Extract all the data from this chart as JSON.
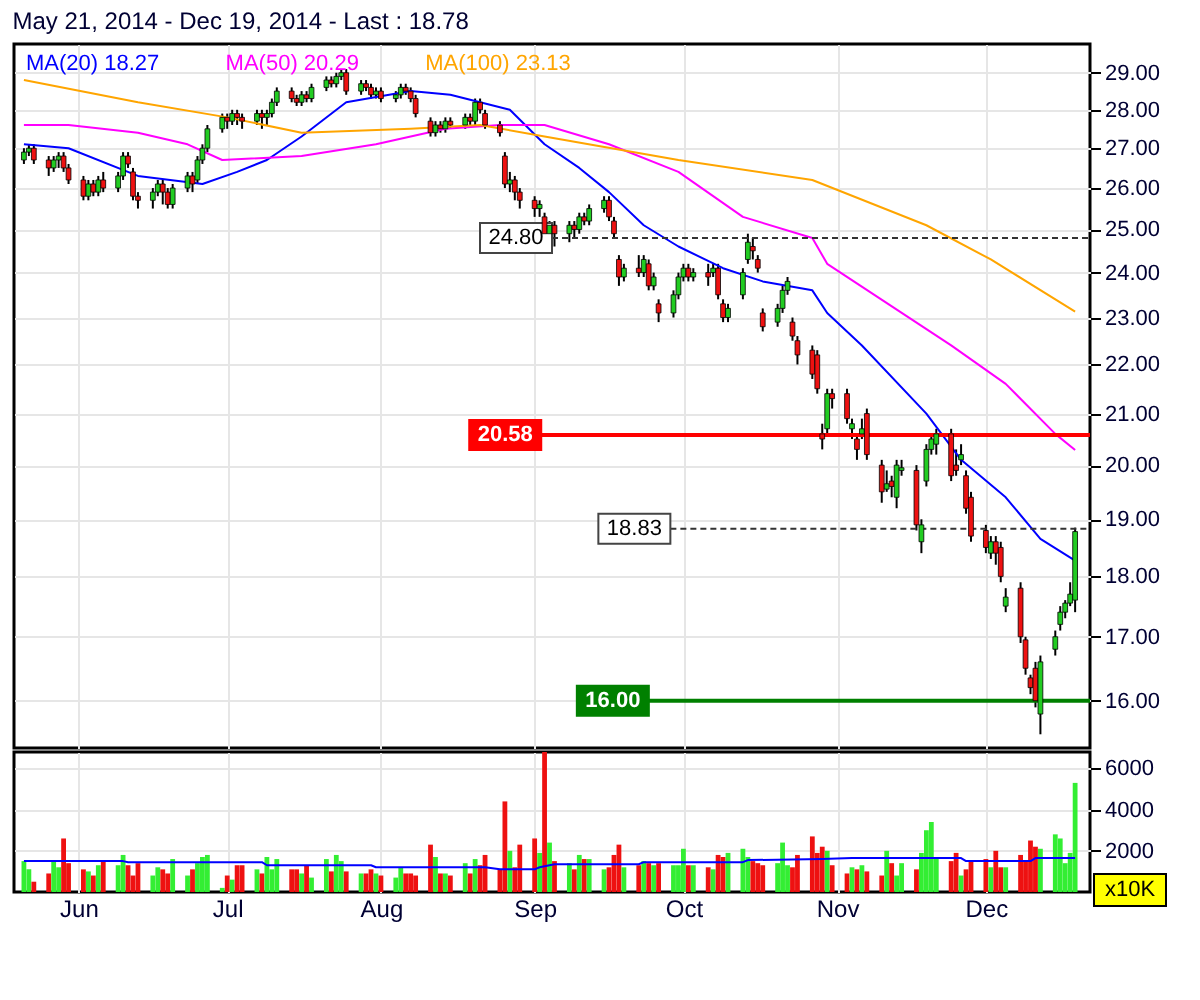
{
  "chart_data": [
    {
      "type": "candlestick",
      "title": "May 21, 2014 - Dec 19, 2014 - Last : 18.78",
      "x": [
        "2014-05-21",
        "2014-05-22",
        "2014-05-23",
        "2014-05-26",
        "2014-05-27",
        "2014-05-28",
        "2014-05-29",
        "2014-05-30",
        "2014-06-02",
        "2014-06-03",
        "2014-06-04",
        "2014-06-05",
        "2014-06-06",
        "2014-06-09",
        "2014-06-10",
        "2014-06-11",
        "2014-06-12",
        "2014-06-13",
        "2014-06-16",
        "2014-06-17",
        "2014-06-18",
        "2014-06-19",
        "2014-06-20",
        "2014-06-23",
        "2014-06-24",
        "2014-06-25",
        "2014-06-26",
        "2014-06-27",
        "2014-06-30",
        "2014-07-01",
        "2014-07-02",
        "2014-07-03",
        "2014-07-04",
        "2014-07-07",
        "2014-07-08",
        "2014-07-09",
        "2014-07-10",
        "2014-07-11",
        "2014-07-14",
        "2014-07-15",
        "2014-07-16",
        "2014-07-17",
        "2014-07-18",
        "2014-07-21",
        "2014-07-22",
        "2014-07-23",
        "2014-07-24",
        "2014-07-25",
        "2014-07-28",
        "2014-07-29",
        "2014-07-30",
        "2014-07-31",
        "2014-08-01",
        "2014-08-04",
        "2014-08-05",
        "2014-08-06",
        "2014-08-07",
        "2014-08-08",
        "2014-08-11",
        "2014-08-12",
        "2014-08-13",
        "2014-08-14",
        "2014-08-15",
        "2014-08-18",
        "2014-08-19",
        "2014-08-20",
        "2014-08-21",
        "2014-08-22",
        "2014-08-25",
        "2014-08-26",
        "2014-08-27",
        "2014-08-28",
        "2014-08-29",
        "2014-09-01",
        "2014-09-02",
        "2014-09-03",
        "2014-09-04",
        "2014-09-05",
        "2014-09-08",
        "2014-09-09",
        "2014-09-10",
        "2014-09-11",
        "2014-09-12",
        "2014-09-15",
        "2014-09-16",
        "2014-09-17",
        "2014-09-18",
        "2014-09-19",
        "2014-09-22",
        "2014-09-23",
        "2014-09-24",
        "2014-09-25",
        "2014-09-26",
        "2014-09-29",
        "2014-09-30",
        "2014-10-01",
        "2014-10-02",
        "2014-10-03",
        "2014-10-06",
        "2014-10-07",
        "2014-10-08",
        "2014-10-09",
        "2014-10-10",
        "2014-10-13",
        "2014-10-14",
        "2014-10-15",
        "2014-10-16",
        "2014-10-17",
        "2014-10-20",
        "2014-10-21",
        "2014-10-22",
        "2014-10-23",
        "2014-10-24",
        "2014-10-27",
        "2014-10-28",
        "2014-10-29",
        "2014-10-30",
        "2014-10-31",
        "2014-11-03",
        "2014-11-04",
        "2014-11-05",
        "2014-11-06",
        "2014-11-07",
        "2014-11-10",
        "2014-11-11",
        "2014-11-12",
        "2014-11-13",
        "2014-11-14",
        "2014-11-17",
        "2014-11-18",
        "2014-11-19",
        "2014-11-20",
        "2014-11-21",
        "2014-11-24",
        "2014-11-25",
        "2014-11-26",
        "2014-11-27",
        "2014-11-28",
        "2014-12-01",
        "2014-12-02",
        "2014-12-03",
        "2014-12-04",
        "2014-12-05",
        "2014-12-08",
        "2014-12-09",
        "2014-12-10",
        "2014-12-11",
        "2014-12-12",
        "2014-12-15",
        "2014-12-16",
        "2014-12-17",
        "2014-12-18",
        "2014-12-19"
      ],
      "ohlc": [
        [
          26.7,
          27.0,
          26.6,
          26.9
        ],
        [
          26.9,
          27.1,
          26.8,
          27.0
        ],
        [
          27.0,
          27.1,
          26.6,
          26.7
        ],
        [
          26.7,
          26.8,
          26.3,
          26.5
        ],
        [
          26.5,
          26.8,
          26.4,
          26.7
        ],
        [
          26.7,
          26.9,
          26.5,
          26.8
        ],
        [
          26.8,
          26.9,
          26.4,
          26.5
        ],
        [
          26.5,
          26.6,
          26.1,
          26.2
        ],
        [
          26.2,
          26.3,
          25.7,
          25.8
        ],
        [
          25.8,
          26.2,
          25.7,
          26.1
        ],
        [
          26.1,
          26.2,
          25.8,
          25.9
        ],
        [
          25.9,
          26.3,
          25.8,
          26.2
        ],
        [
          26.2,
          26.4,
          25.9,
          26.0
        ],
        [
          26.0,
          26.4,
          25.9,
          26.3
        ],
        [
          26.3,
          26.9,
          26.2,
          26.8
        ],
        [
          26.8,
          26.9,
          26.5,
          26.6
        ],
        [
          26.4,
          26.5,
          25.7,
          25.8
        ],
        [
          25.8,
          25.9,
          25.5,
          25.7
        ],
        [
          25.7,
          26.0,
          25.5,
          25.9
        ],
        [
          25.9,
          26.2,
          25.8,
          26.1
        ],
        [
          26.1,
          26.2,
          25.6,
          25.9
        ],
        [
          25.9,
          26.0,
          25.5,
          25.6
        ],
        [
          25.6,
          26.1,
          25.5,
          26.0
        ],
        [
          26.0,
          26.4,
          25.9,
          26.3
        ],
        [
          26.3,
          26.4,
          25.9,
          26.1
        ],
        [
          26.2,
          26.8,
          26.1,
          26.7
        ],
        [
          26.7,
          27.1,
          26.6,
          27.0
        ],
        [
          27.0,
          27.6,
          26.9,
          27.5
        ],
        [
          27.5,
          27.9,
          27.4,
          27.8
        ],
        [
          27.8,
          27.9,
          27.5,
          27.7
        ],
        [
          27.7,
          28.0,
          27.6,
          27.9
        ],
        [
          27.9,
          28.0,
          27.6,
          27.8
        ],
        [
          27.8,
          27.9,
          27.5,
          27.7
        ],
        [
          27.7,
          28.0,
          27.6,
          27.9
        ],
        [
          27.9,
          28.0,
          27.5,
          27.8
        ],
        [
          27.8,
          28.0,
          27.6,
          27.9
        ],
        [
          27.9,
          28.3,
          27.8,
          28.2
        ],
        [
          28.2,
          28.6,
          28.1,
          28.5
        ],
        [
          28.5,
          28.6,
          28.2,
          28.3
        ],
        [
          28.3,
          28.4,
          28.1,
          28.2
        ],
        [
          28.2,
          28.5,
          28.1,
          28.4
        ],
        [
          28.4,
          28.5,
          28.2,
          28.3
        ],
        [
          28.3,
          28.7,
          28.2,
          28.6
        ],
        [
          28.6,
          28.9,
          28.5,
          28.8
        ],
        [
          28.8,
          28.9,
          28.6,
          28.7
        ],
        [
          28.7,
          29.0,
          28.6,
          28.9
        ],
        [
          28.9,
          29.1,
          28.8,
          29.0
        ],
        [
          29.0,
          29.1,
          28.4,
          28.5
        ],
        [
          28.5,
          28.8,
          28.4,
          28.7
        ],
        [
          28.7,
          28.8,
          28.5,
          28.6
        ],
        [
          28.6,
          28.7,
          28.3,
          28.4
        ],
        [
          28.4,
          28.6,
          28.3,
          28.5
        ],
        [
          28.5,
          28.6,
          28.2,
          28.3
        ],
        [
          28.3,
          28.5,
          28.2,
          28.4
        ],
        [
          28.4,
          28.7,
          28.3,
          28.6
        ],
        [
          28.6,
          28.7,
          28.4,
          28.5
        ],
        [
          28.5,
          28.6,
          28.2,
          28.3
        ],
        [
          28.3,
          28.4,
          27.8,
          27.9
        ],
        [
          27.7,
          27.8,
          27.3,
          27.4
        ],
        [
          27.4,
          27.7,
          27.3,
          27.6
        ],
        [
          27.6,
          27.7,
          27.4,
          27.5
        ],
        [
          27.5,
          27.8,
          27.4,
          27.7
        ],
        [
          27.7,
          27.8,
          27.5,
          27.6
        ],
        [
          27.6,
          27.9,
          27.5,
          27.8
        ],
        [
          27.8,
          27.9,
          27.6,
          27.7
        ],
        [
          27.7,
          28.3,
          27.6,
          28.2
        ],
        [
          28.2,
          28.3,
          27.9,
          28.0
        ],
        [
          27.9,
          28.0,
          27.5,
          27.6
        ],
        [
          27.6,
          27.7,
          27.3,
          27.4
        ],
        [
          26.8,
          26.9,
          26.0,
          26.1
        ],
        [
          26.1,
          26.4,
          25.9,
          26.2
        ],
        [
          26.2,
          26.3,
          25.7,
          25.9
        ],
        [
          25.9,
          26.0,
          25.5,
          25.7
        ],
        [
          25.7,
          25.8,
          25.3,
          25.5
        ],
        [
          25.5,
          25.7,
          25.3,
          25.6
        ],
        [
          25.3,
          25.4,
          24.7,
          24.9
        ],
        [
          24.9,
          25.2,
          24.8,
          25.1
        ],
        [
          25.1,
          25.2,
          24.6,
          24.9
        ],
        [
          24.9,
          25.2,
          24.7,
          25.1
        ],
        [
          25.1,
          25.2,
          24.8,
          25.0
        ],
        [
          25.0,
          25.4,
          24.9,
          25.3
        ],
        [
          25.3,
          25.4,
          25.1,
          25.2
        ],
        [
          25.2,
          25.6,
          25.1,
          25.5
        ],
        [
          25.5,
          25.8,
          25.4,
          25.7
        ],
        [
          25.7,
          25.8,
          25.2,
          25.3
        ],
        [
          25.2,
          25.3,
          24.8,
          24.9
        ],
        [
          24.3,
          24.4,
          23.7,
          23.9
        ],
        [
          23.9,
          24.2,
          23.8,
          24.1
        ],
        [
          24.1,
          24.4,
          23.9,
          24.0
        ],
        [
          24.0,
          24.4,
          23.9,
          24.3
        ],
        [
          24.2,
          24.3,
          23.6,
          23.7
        ],
        [
          23.7,
          24.0,
          23.6,
          23.9
        ],
        [
          23.3,
          23.4,
          22.9,
          23.1
        ],
        [
          23.1,
          23.6,
          23.0,
          23.5
        ],
        [
          23.5,
          24.0,
          23.4,
          23.9
        ],
        [
          23.9,
          24.2,
          23.8,
          24.1
        ],
        [
          24.1,
          24.2,
          23.8,
          23.9
        ],
        [
          23.9,
          24.1,
          23.8,
          24.0
        ],
        [
          24.0,
          24.2,
          23.7,
          23.9
        ],
        [
          24.0,
          24.2,
          23.9,
          24.1
        ],
        [
          24.1,
          24.2,
          23.4,
          23.5
        ],
        [
          23.3,
          23.4,
          22.9,
          23.0
        ],
        [
          23.0,
          23.3,
          22.9,
          23.2
        ],
        [
          23.5,
          24.1,
          23.4,
          24.0
        ],
        [
          24.3,
          24.9,
          24.2,
          24.7
        ],
        [
          24.6,
          24.8,
          24.3,
          24.5
        ],
        [
          24.3,
          24.4,
          24.0,
          24.1
        ],
        [
          23.1,
          23.2,
          22.7,
          22.8
        ],
        [
          22.9,
          23.3,
          22.8,
          23.2
        ],
        [
          23.2,
          23.7,
          23.1,
          23.6
        ],
        [
          23.6,
          23.9,
          23.5,
          23.8
        ],
        [
          22.9,
          23.0,
          22.5,
          22.6
        ],
        [
          22.5,
          22.6,
          22.0,
          22.2
        ],
        [
          22.3,
          22.4,
          21.7,
          21.8
        ],
        [
          22.2,
          22.3,
          21.4,
          21.5
        ],
        [
          20.6,
          20.8,
          20.3,
          20.5
        ],
        [
          20.7,
          21.5,
          20.6,
          21.4
        ],
        [
          21.4,
          21.5,
          21.1,
          21.3
        ],
        [
          21.4,
          21.5,
          20.8,
          20.9
        ],
        [
          20.7,
          20.9,
          20.5,
          20.8
        ],
        [
          20.5,
          20.6,
          20.1,
          20.3
        ],
        [
          20.6,
          20.9,
          20.5,
          20.7
        ],
        [
          21.0,
          21.1,
          20.1,
          20.2
        ],
        [
          20.0,
          20.1,
          19.3,
          19.5
        ],
        [
          19.55,
          19.9,
          19.5,
          19.65
        ],
        [
          19.7,
          19.8,
          19.4,
          19.6
        ],
        [
          19.4,
          20.1,
          19.2,
          20.0
        ],
        [
          19.9,
          20.1,
          19.8,
          19.95
        ],
        [
          19.9,
          20.0,
          18.8,
          18.9
        ],
        [
          18.6,
          19.0,
          18.4,
          18.9
        ],
        [
          19.7,
          20.4,
          19.6,
          20.3
        ],
        [
          20.3,
          20.6,
          20.2,
          20.5
        ],
        [
          20.4,
          20.7,
          20.2,
          20.6
        ],
        [
          20.6,
          20.7,
          19.7,
          19.8
        ],
        [
          20.0,
          20.3,
          19.8,
          19.9
        ],
        [
          20.1,
          20.4,
          20.0,
          20.2
        ],
        [
          19.8,
          19.9,
          19.1,
          19.2
        ],
        [
          19.4,
          19.5,
          18.6,
          18.7
        ],
        [
          18.8,
          18.9,
          18.4,
          18.5
        ],
        [
          18.4,
          18.7,
          18.3,
          18.6
        ],
        [
          18.6,
          18.7,
          18.2,
          18.4
        ],
        [
          18.5,
          18.6,
          17.9,
          18.0
        ],
        [
          17.5,
          17.8,
          17.4,
          17.65
        ],
        [
          17.8,
          17.9,
          16.9,
          17.0
        ],
        [
          16.95,
          17.0,
          16.4,
          16.5
        ],
        [
          16.35,
          16.4,
          16.1,
          16.2
        ],
        [
          16.5,
          16.6,
          15.9,
          16.0
        ],
        [
          15.8,
          16.7,
          15.5,
          16.6
        ],
        [
          16.8,
          17.1,
          16.7,
          17.0
        ],
        [
          17.2,
          17.5,
          17.1,
          17.4
        ],
        [
          17.4,
          17.6,
          17.3,
          17.55
        ],
        [
          17.55,
          17.9,
          17.5,
          17.7
        ],
        [
          17.6,
          18.85,
          17.4,
          18.78
        ]
      ],
      "colors": [
        "#22cc22",
        "#22cc22",
        "#ee1111",
        "#ee1111",
        "#22cc22",
        "#22cc22",
        "#ee1111",
        "#ee1111",
        "#ee1111",
        "#22cc22",
        "#ee1111",
        "#22cc22",
        "#ee1111",
        "#22cc22",
        "#22cc22",
        "#ee1111",
        "#ee1111",
        "#ee1111",
        "#22cc22",
        "#22cc22",
        "#ee1111",
        "#ee1111",
        "#22cc22",
        "#22cc22",
        "#ee1111",
        "#22cc22",
        "#22cc22",
        "#22cc22",
        "#22cc22",
        "#ee1111",
        "#22cc22",
        "#ee1111",
        "#ee1111",
        "#22cc22",
        "#ee1111",
        "#22cc22",
        "#22cc22",
        "#22cc22",
        "#ee1111",
        "#ee1111",
        "#22cc22",
        "#ee1111",
        "#22cc22",
        "#22cc22",
        "#ee1111",
        "#22cc22",
        "#22cc22",
        "#ee1111",
        "#22cc22",
        "#ee1111",
        "#ee1111",
        "#22cc22",
        "#ee1111",
        "#22cc22",
        "#22cc22",
        "#ee1111",
        "#ee1111",
        "#ee1111",
        "#ee1111",
        "#22cc22",
        "#ee1111",
        "#22cc22",
        "#ee1111",
        "#22cc22",
        "#ee1111",
        "#22cc22",
        "#ee1111",
        "#ee1111",
        "#ee1111",
        "#ee1111",
        "#22cc22",
        "#ee1111",
        "#ee1111",
        "#ee1111",
        "#22cc22",
        "#ee1111",
        "#22cc22",
        "#ee1111",
        "#22cc22",
        "#ee1111",
        "#22cc22",
        "#ee1111",
        "#22cc22",
        "#22cc22",
        "#ee1111",
        "#ee1111",
        "#ee1111",
        "#22cc22",
        "#ee1111",
        "#22cc22",
        "#ee1111",
        "#22cc22",
        "#ee1111",
        "#22cc22",
        "#22cc22",
        "#22cc22",
        "#ee1111",
        "#22cc22",
        "#ee1111",
        "#22cc22",
        "#ee1111",
        "#ee1111",
        "#22cc22",
        "#22cc22",
        "#22cc22",
        "#ee1111",
        "#ee1111",
        "#ee1111",
        "#22cc22",
        "#22cc22",
        "#22cc22",
        "#ee1111",
        "#ee1111",
        "#ee1111",
        "#ee1111",
        "#ee1111",
        "#22cc22",
        "#ee1111",
        "#ee1111",
        "#22cc22",
        "#ee1111",
        "#22cc22",
        "#ee1111",
        "#ee1111",
        "#22cc22",
        "#ee1111",
        "#22cc22",
        "#22cc22",
        "#ee1111",
        "#22cc22",
        "#22cc22",
        "#22cc22",
        "#22cc22",
        "#ee1111",
        "#ee1111",
        "#22cc22",
        "#ee1111",
        "#ee1111",
        "#ee1111",
        "#22cc22",
        "#ee1111",
        "#ee1111",
        "#22cc22",
        "#ee1111",
        "#ee1111",
        "#ee1111",
        "#ee1111",
        "#22cc22",
        "#22cc22",
        "#22cc22",
        "#22cc22",
        "#22cc22",
        "#22cc22"
      ],
      "series": [
        {
          "name": "MA(20)  18.27",
          "type": "line",
          "color": "#0000ff",
          "x": [
            "2014-05-21",
            "2014-05-30",
            "2014-06-13",
            "2014-06-26",
            "2014-07-03",
            "2014-07-09",
            "2014-07-16",
            "2014-07-25",
            "2014-08-07",
            "2014-08-15",
            "2014-08-21",
            "2014-08-27",
            "2014-09-03",
            "2014-09-10",
            "2014-09-16",
            "2014-09-23",
            "2014-09-30",
            "2014-10-09",
            "2014-10-17",
            "2014-10-27",
            "2014-10-30",
            "2014-11-06",
            "2014-11-19",
            "2014-11-26",
            "2014-12-05",
            "2014-12-12",
            "2014-12-19"
          ],
          "values": [
            27.1,
            27.0,
            26.3,
            26.1,
            26.4,
            26.7,
            27.3,
            28.2,
            28.5,
            28.4,
            28.2,
            28.0,
            27.1,
            26.5,
            25.9,
            25.1,
            24.6,
            24.1,
            23.8,
            23.6,
            23.1,
            22.4,
            21.0,
            20.1,
            19.4,
            18.65,
            18.27
          ]
        },
        {
          "name": "MA(50)  20.29",
          "type": "line",
          "color": "#ff00ff",
          "x": [
            "2014-05-21",
            "2014-05-30",
            "2014-06-13",
            "2014-06-23",
            "2014-06-30",
            "2014-07-16",
            "2014-07-31",
            "2014-08-14",
            "2014-08-25",
            "2014-09-03",
            "2014-09-16",
            "2014-09-30",
            "2014-10-13",
            "2014-10-27",
            "2014-10-30",
            "2014-11-24",
            "2014-12-05",
            "2014-12-15",
            "2014-12-19"
          ],
          "values": [
            27.6,
            27.6,
            27.4,
            27.1,
            26.7,
            26.8,
            27.1,
            27.5,
            27.6,
            27.6,
            27.1,
            26.4,
            25.3,
            24.8,
            24.2,
            22.4,
            21.6,
            20.6,
            20.29
          ]
        },
        {
          "name": "MA(100)  23.13",
          "type": "line",
          "color": "#ffa500",
          "x": [
            "2014-05-21",
            "2014-06-13",
            "2014-07-01",
            "2014-07-16",
            "2014-08-07",
            "2014-08-21",
            "2014-09-03",
            "2014-09-30",
            "2014-10-27",
            "2014-11-19",
            "2014-12-02",
            "2014-12-19"
          ],
          "values": [
            28.8,
            28.2,
            27.8,
            27.4,
            27.5,
            27.6,
            27.3,
            26.7,
            26.2,
            25.1,
            24.3,
            23.13
          ]
        }
      ],
      "log": true,
      "ylim": [
        15.3,
        29.8
      ],
      "yticks": [
        {
          "value": 16,
          "label": "16.00"
        },
        {
          "value": 17,
          "label": "17.00"
        },
        {
          "value": 18,
          "label": "18.00"
        },
        {
          "value": 19,
          "label": "19.00"
        },
        {
          "value": 20,
          "label": "20.00"
        },
        {
          "value": 21,
          "label": "21.00"
        },
        {
          "value": 22,
          "label": "22.00"
        },
        {
          "value": 23,
          "label": "23.00"
        },
        {
          "value": 24,
          "label": "24.00"
        },
        {
          "value": 25,
          "label": "25.00"
        },
        {
          "value": 26,
          "label": "26.00"
        },
        {
          "value": 27,
          "label": "27.00"
        },
        {
          "value": 28,
          "label": "28.00"
        },
        {
          "value": 29,
          "label": "29.00"
        }
      ],
      "xlim": [
        "2014-05-19",
        "2014-12-22"
      ],
      "xticks": [
        {
          "value": "2014-06-01",
          "label": null
        },
        {
          "value": "2014-07-01",
          "label": null
        },
        {
          "value": "2014-08-01",
          "label": null
        },
        {
          "value": "2014-09-01",
          "label": null
        },
        {
          "value": "2014-10-01",
          "label": null
        },
        {
          "value": "2014-11-01",
          "label": null
        },
        {
          "value": "2014-12-01",
          "label": null
        }
      ],
      "tick_labels": "y",
      "grid": true,
      "ref_lines": [
        {
          "axis": "y",
          "value": 24.8,
          "label": "24.80",
          "color": "#333333",
          "line_style": "dashed"
        },
        {
          "axis": "y",
          "value": 20.58,
          "label": "20.58",
          "color": "#ff0000",
          "line_style": "solid"
        },
        {
          "axis": "y",
          "value": 18.83,
          "label": "18.83",
          "color": "#333333",
          "line_style": "dashed"
        },
        {
          "axis": "y",
          "value": 16.0,
          "label": "16.00",
          "color": "#008000",
          "line_style": "solid"
        }
      ]
    },
    {
      "type": "bar",
      "ylabel": "x10K",
      "x": [
        "2014-05-21",
        "2014-05-22",
        "2014-05-23",
        "2014-05-26",
        "2014-05-27",
        "2014-05-28",
        "2014-05-29",
        "2014-05-30",
        "2014-06-02",
        "2014-06-03",
        "2014-06-04",
        "2014-06-05",
        "2014-06-06",
        "2014-06-09",
        "2014-06-10",
        "2014-06-11",
        "2014-06-12",
        "2014-06-13",
        "2014-06-16",
        "2014-06-17",
        "2014-06-18",
        "2014-06-19",
        "2014-06-20",
        "2014-06-23",
        "2014-06-24",
        "2014-06-25",
        "2014-06-26",
        "2014-06-27",
        "2014-06-30",
        "2014-07-01",
        "2014-07-02",
        "2014-07-03",
        "2014-07-04",
        "2014-07-07",
        "2014-07-08",
        "2014-07-09",
        "2014-07-10",
        "2014-07-11",
        "2014-07-14",
        "2014-07-15",
        "2014-07-16",
        "2014-07-17",
        "2014-07-18",
        "2014-07-21",
        "2014-07-22",
        "2014-07-23",
        "2014-07-24",
        "2014-07-25",
        "2014-07-28",
        "2014-07-29",
        "2014-07-30",
        "2014-07-31",
        "2014-08-01",
        "2014-08-04",
        "2014-08-05",
        "2014-08-06",
        "2014-08-07",
        "2014-08-08",
        "2014-08-11",
        "2014-08-12",
        "2014-08-13",
        "2014-08-14",
        "2014-08-15",
        "2014-08-18",
        "2014-08-19",
        "2014-08-20",
        "2014-08-21",
        "2014-08-22",
        "2014-08-25",
        "2014-08-26",
        "2014-08-27",
        "2014-08-28",
        "2014-08-29",
        "2014-09-01",
        "2014-09-02",
        "2014-09-03",
        "2014-09-04",
        "2014-09-05",
        "2014-09-08",
        "2014-09-09",
        "2014-09-10",
        "2014-09-11",
        "2014-09-12",
        "2014-09-15",
        "2014-09-16",
        "2014-09-17",
        "2014-09-18",
        "2014-09-19",
        "2014-09-22",
        "2014-09-23",
        "2014-09-24",
        "2014-09-25",
        "2014-09-26",
        "2014-09-29",
        "2014-09-30",
        "2014-10-01",
        "2014-10-02",
        "2014-10-03",
        "2014-10-06",
        "2014-10-07",
        "2014-10-08",
        "2014-10-09",
        "2014-10-10",
        "2014-10-13",
        "2014-10-14",
        "2014-10-15",
        "2014-10-16",
        "2014-10-17",
        "2014-10-20",
        "2014-10-21",
        "2014-10-22",
        "2014-10-23",
        "2014-10-24",
        "2014-10-27",
        "2014-10-28",
        "2014-10-29",
        "2014-10-30",
        "2014-10-31",
        "2014-11-03",
        "2014-11-04",
        "2014-11-05",
        "2014-11-06",
        "2014-11-07",
        "2014-11-10",
        "2014-11-11",
        "2014-11-12",
        "2014-11-13",
        "2014-11-14",
        "2014-11-17",
        "2014-11-18",
        "2014-11-19",
        "2014-11-20",
        "2014-11-21",
        "2014-11-24",
        "2014-11-25",
        "2014-11-26",
        "2014-11-27",
        "2014-11-28",
        "2014-12-01",
        "2014-12-02",
        "2014-12-03",
        "2014-12-04",
        "2014-12-05",
        "2014-12-08",
        "2014-12-09",
        "2014-12-10",
        "2014-12-11",
        "2014-12-12",
        "2014-12-15",
        "2014-12-16",
        "2014-12-17",
        "2014-12-18",
        "2014-12-19"
      ],
      "values": [
        1500,
        1100,
        500,
        900,
        1500,
        1200,
        2600,
        1400,
        1100,
        1000,
        800,
        1300,
        1500,
        1300,
        1800,
        1300,
        800,
        1400,
        800,
        1200,
        1100,
        900,
        1600,
        800,
        1100,
        1400,
        1700,
        1800,
        200,
        800,
        600,
        1300,
        1300,
        1100,
        900,
        1700,
        1100,
        1600,
        1100,
        1100,
        900,
        1300,
        700,
        1600,
        1000,
        1800,
        1500,
        1000,
        900,
        900,
        1100,
        900,
        800,
        700,
        1200,
        900,
        900,
        800,
        2300,
        1700,
        900,
        900,
        800,
        1400,
        900,
        1600,
        1300,
        1800,
        1100,
        4400,
        2000,
        1200,
        2300,
        2600,
        1900,
        6800,
        2400,
        1500,
        1400,
        1100,
        1800,
        1600,
        1600,
        1100,
        1200,
        1800,
        2300,
        1200,
        1300,
        1500,
        1400,
        1300,
        1400,
        1300,
        1300,
        2100,
        1300,
        1300,
        1200,
        1100,
        1800,
        1700,
        1900,
        2100,
        1700,
        1500,
        1400,
        1300,
        1400,
        2400,
        1300,
        1200,
        1800,
        2700,
        1900,
        2200,
        2000,
        1300,
        900,
        1200,
        1100,
        1300,
        1000,
        800,
        2000,
        1400,
        800,
        1400,
        1100,
        1900,
        3000,
        3400,
        1700,
        1500,
        1900,
        800,
        1100,
        1500,
        1600,
        1200,
        2000,
        1200,
        1200,
        1800,
        1500,
        2500,
        2200,
        2100,
        2800,
        2600,
        1400,
        1900,
        5300
      ],
      "colors": [
        "#33ee33",
        "#33ee33",
        "#ee1111",
        "#ee1111",
        "#33ee33",
        "#33ee33",
        "#ee1111",
        "#ee1111",
        "#ee1111",
        "#33ee33",
        "#ee1111",
        "#33ee33",
        "#ee1111",
        "#33ee33",
        "#33ee33",
        "#ee1111",
        "#ee1111",
        "#ee1111",
        "#33ee33",
        "#33ee33",
        "#ee1111",
        "#ee1111",
        "#33ee33",
        "#33ee33",
        "#ee1111",
        "#33ee33",
        "#33ee33",
        "#33ee33",
        "#33ee33",
        "#ee1111",
        "#33ee33",
        "#ee1111",
        "#ee1111",
        "#33ee33",
        "#ee1111",
        "#33ee33",
        "#33ee33",
        "#33ee33",
        "#ee1111",
        "#ee1111",
        "#33ee33",
        "#ee1111",
        "#33ee33",
        "#33ee33",
        "#ee1111",
        "#33ee33",
        "#33ee33",
        "#ee1111",
        "#33ee33",
        "#ee1111",
        "#ee1111",
        "#33ee33",
        "#ee1111",
        "#33ee33",
        "#33ee33",
        "#ee1111",
        "#ee1111",
        "#ee1111",
        "#ee1111",
        "#33ee33",
        "#ee1111",
        "#33ee33",
        "#ee1111",
        "#33ee33",
        "#ee1111",
        "#33ee33",
        "#ee1111",
        "#ee1111",
        "#ee1111",
        "#ee1111",
        "#33ee33",
        "#ee1111",
        "#ee1111",
        "#ee1111",
        "#33ee33",
        "#ee1111",
        "#33ee33",
        "#ee1111",
        "#33ee33",
        "#ee1111",
        "#33ee33",
        "#ee1111",
        "#33ee33",
        "#33ee33",
        "#ee1111",
        "#ee1111",
        "#ee1111",
        "#33ee33",
        "#ee1111",
        "#33ee33",
        "#ee1111",
        "#33ee33",
        "#ee1111",
        "#33ee33",
        "#33ee33",
        "#33ee33",
        "#ee1111",
        "#33ee33",
        "#ee1111",
        "#33ee33",
        "#ee1111",
        "#ee1111",
        "#33ee33",
        "#33ee33",
        "#33ee33",
        "#ee1111",
        "#ee1111",
        "#ee1111",
        "#33ee33",
        "#33ee33",
        "#33ee33",
        "#ee1111",
        "#ee1111",
        "#ee1111",
        "#ee1111",
        "#ee1111",
        "#33ee33",
        "#ee1111",
        "#ee1111",
        "#33ee33",
        "#ee1111",
        "#33ee33",
        "#ee1111",
        "#ee1111",
        "#33ee33",
        "#ee1111",
        "#33ee33",
        "#33ee33",
        "#ee1111",
        "#33ee33",
        "#33ee33",
        "#33ee33",
        "#33ee33",
        "#ee1111",
        "#ee1111",
        "#33ee33",
        "#ee1111",
        "#ee1111",
        "#ee1111",
        "#33ee33",
        "#ee1111",
        "#ee1111",
        "#33ee33",
        "#ee1111",
        "#ee1111",
        "#ee1111",
        "#ee1111",
        "#33ee33",
        "#33ee33",
        "#33ee33",
        "#33ee33",
        "#33ee33",
        "#33ee33"
      ],
      "series": [
        {
          "type": "line",
          "color": "#0000ff",
          "x": [
            "2014-05-21",
            "2014-06-10",
            "2014-06-11",
            "2014-07-08",
            "2014-07-09",
            "2014-07-30",
            "2014-07-31",
            "2014-08-22",
            "2014-08-25",
            "2014-09-01",
            "2014-09-02",
            "2014-09-05",
            "2014-09-22",
            "2014-09-23",
            "2014-10-13",
            "2014-10-14",
            "2014-10-29",
            "2014-11-04",
            "2014-11-26",
            "2014-11-27",
            "2014-12-10",
            "2014-12-11",
            "2014-12-19"
          ],
          "values": [
            1500,
            1500,
            1450,
            1450,
            1300,
            1300,
            1200,
            1200,
            1100,
            1100,
            1200,
            1350,
            1350,
            1450,
            1450,
            1550,
            1600,
            1650,
            1650,
            1500,
            1500,
            1650,
            1650
          ]
        }
      ],
      "ylim": [
        0,
        6800
      ],
      "yticks": [
        2000,
        4000,
        6000
      ],
      "xlim": [
        "2014-05-19",
        "2014-12-22"
      ],
      "xticks": [
        {
          "value": "2014-06-01",
          "label": "Jun"
        },
        {
          "value": "2014-07-01",
          "label": "Jul"
        },
        {
          "value": "2014-08-01",
          "label": "Aug"
        },
        {
          "value": "2014-09-01",
          "label": "Sep"
        },
        {
          "value": "2014-10-01",
          "label": "Oct"
        },
        {
          "value": "2014-11-01",
          "label": "Nov"
        },
        {
          "value": "2014-12-01",
          "label": "Dec"
        }
      ],
      "grid": true
    }
  ]
}
